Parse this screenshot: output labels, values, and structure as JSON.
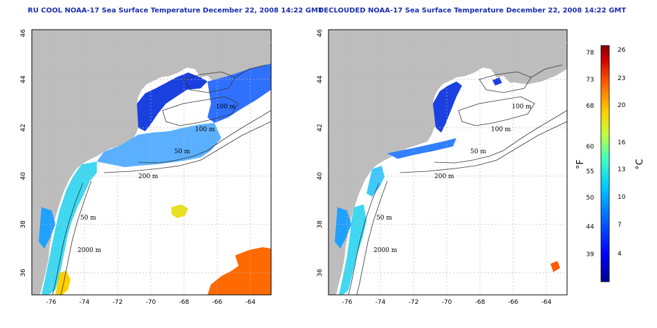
{
  "panels": [
    {
      "title": "RU COOL NOAA-17 Sea Surface Temperature December 22, 2008 14:22 GMT",
      "contour_labels": [
        "100 m",
        "100 m",
        "50 m",
        "200 m",
        "50 m",
        "2000 m"
      ]
    },
    {
      "title": "DECLOUDED NOAA-17 Sea Surface Temperature December 22, 2008 14:22 GMT",
      "contour_labels": [
        "100 m",
        "100 m",
        "50 m",
        "200 m",
        "50 m",
        "2000 m"
      ]
    }
  ],
  "x_ticks": [
    "-76",
    "-74",
    "-72",
    "-70",
    "-68",
    "-66",
    "-64"
  ],
  "y_ticks": [
    "36",
    "38",
    "40",
    "42",
    "44",
    "46"
  ],
  "colorbar": {
    "fahrenheit_label": "°F",
    "celsius_label": "°C",
    "fahrenheit_ticks": [
      "78",
      "73",
      "68",
      "60",
      "55",
      "50",
      "44",
      "39"
    ],
    "celsius_ticks": [
      "26",
      "23",
      "20",
      "16",
      "13",
      "10",
      "7",
      "4"
    ],
    "colors": [
      "#00008f",
      "#0000ff",
      "#0070ff",
      "#00c8ff",
      "#40ffc0",
      "#c0ff40",
      "#ffd000",
      "#ff6000",
      "#d00000",
      "#800000"
    ]
  },
  "colors": {
    "land": "#bdbdbd",
    "ocean": "#ffffff",
    "grid": "#b8b8b8",
    "title": "#1a2fb0"
  }
}
